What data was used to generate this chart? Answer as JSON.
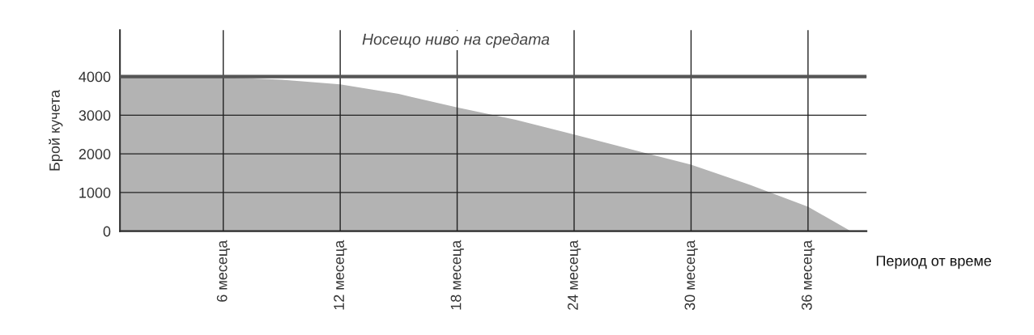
{
  "chart_data": {
    "type": "area",
    "ylabel": "Брой кучета",
    "xlabel": "Период от време",
    "x": [
      0.7,
      3,
      6,
      9,
      12,
      15,
      18,
      21,
      24,
      27.8,
      30,
      33,
      36,
      38.2
    ],
    "series": [
      {
        "color": "#b3b3b3",
        "values": [
          4000,
          4000,
          3980,
          3920,
          3800,
          3550,
          3200,
          2880,
          2500,
          2000,
          1720,
          1200,
          630,
          0
        ]
      }
    ],
    "xlim": [
      0.7,
      39
    ],
    "ylim": [
      0,
      5200
    ],
    "xticks": [
      {
        "value": 6,
        "label": "6 месеца"
      },
      {
        "value": 12,
        "label": "12 месеца"
      },
      {
        "value": 18,
        "label": "18 месеца"
      },
      {
        "value": 24,
        "label": "24 месеца"
      },
      {
        "value": 30,
        "label": "30 месеца"
      },
      {
        "value": 36,
        "label": "36 месеца"
      }
    ],
    "yticks": [
      0,
      1000,
      2000,
      3000,
      4000
    ],
    "ref_lines": [
      {
        "axis": "y",
        "value": 4000,
        "label": "Носещо ниво на средата",
        "color": "#555555"
      }
    ],
    "grid": true
  }
}
